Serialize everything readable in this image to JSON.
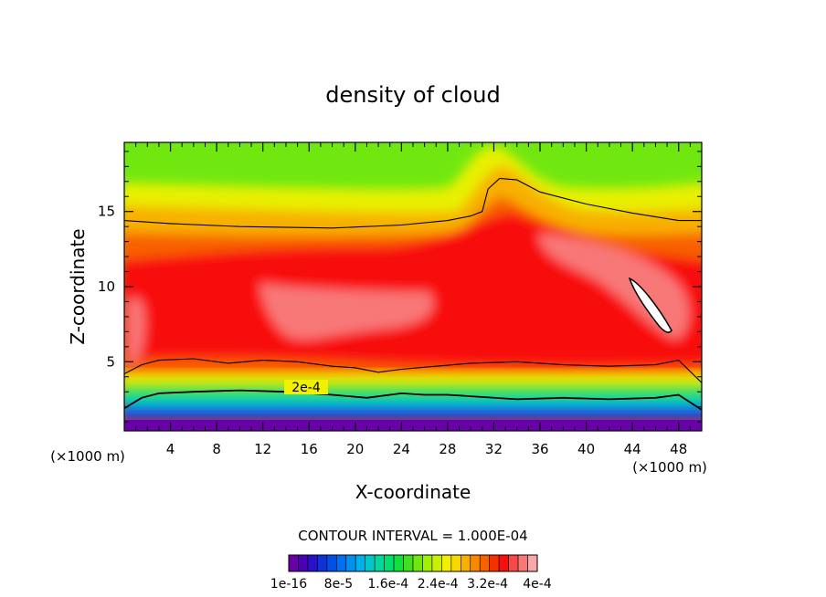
{
  "chart_data": {
    "type": "heatmap",
    "title": "density of cloud",
    "xlabel": "X-coordinate",
    "ylabel": "Z-coordinate",
    "x_unit_left": "(×1000 m)",
    "x_unit_right": "(×1000 m)",
    "xlim": [
      0,
      50
    ],
    "ylim": [
      0.4,
      19.6
    ],
    "x_ticks": [
      4,
      8,
      12,
      16,
      20,
      24,
      28,
      32,
      36,
      40,
      44,
      48
    ],
    "y_ticks": [
      5,
      10,
      15
    ],
    "contour_interval_text": "CONTOUR INTERVAL = 1.000E-04",
    "contour_label": "2e-4",
    "colorbar": {
      "tick_labels": [
        "1e-16",
        "8e-5",
        "1.6e-4",
        "2.4e-4",
        "3.2e-4",
        "4e-4"
      ],
      "colors": [
        "#6a00a8",
        "#4b00b8",
        "#2a10c8",
        "#1030d8",
        "#0050e8",
        "#0070f0",
        "#0090f0",
        "#00b0e8",
        "#00c8c8",
        "#00d8a0",
        "#00e070",
        "#10e040",
        "#40e020",
        "#70e810",
        "#a0f000",
        "#c8f000",
        "#f0f000",
        "#f8d800",
        "#f8b000",
        "#f88800",
        "#f86000",
        "#f83000",
        "#f81010",
        "#f84848",
        "#f87878",
        "#f8a8a8"
      ]
    },
    "isolines": [
      {
        "value": "1e-4",
        "points": [
          [
            0,
            4.2
          ],
          [
            1.5,
            4.8
          ],
          [
            3,
            5.1
          ],
          [
            6,
            5.2
          ],
          [
            9,
            4.9
          ],
          [
            12,
            5.1
          ],
          [
            15,
            5.0
          ],
          [
            18,
            4.7
          ],
          [
            20,
            4.6
          ],
          [
            22,
            4.3
          ],
          [
            24,
            4.5
          ],
          [
            27,
            4.7
          ],
          [
            30,
            4.9
          ],
          [
            34,
            5.0
          ],
          [
            38,
            4.8
          ],
          [
            42,
            4.7
          ],
          [
            46,
            4.8
          ],
          [
            48,
            5.1
          ],
          [
            50,
            3.6
          ]
        ]
      },
      {
        "value": "2e-4",
        "points": [
          [
            0,
            1.9
          ],
          [
            1.5,
            2.6
          ],
          [
            3,
            2.9
          ],
          [
            6,
            3.0
          ],
          [
            10,
            3.1
          ],
          [
            14,
            3.0
          ],
          [
            18,
            2.8
          ],
          [
            21,
            2.6
          ],
          [
            24,
            2.9
          ],
          [
            26,
            2.8
          ],
          [
            28,
            2.8
          ],
          [
            30,
            2.7
          ],
          [
            34,
            2.5
          ],
          [
            38,
            2.6
          ],
          [
            42,
            2.5
          ],
          [
            46,
            2.6
          ],
          [
            48,
            2.8
          ],
          [
            50,
            1.8
          ]
        ]
      },
      {
        "value": "1e-4",
        "points": [
          [
            0,
            14.4
          ],
          [
            4,
            14.2
          ],
          [
            10,
            14.0
          ],
          [
            18,
            13.9
          ],
          [
            24,
            14.1
          ],
          [
            28,
            14.4
          ],
          [
            30,
            14.7
          ],
          [
            31,
            15.0
          ],
          [
            31.5,
            16.5
          ],
          [
            32.5,
            17.2
          ],
          [
            34,
            17.1
          ],
          [
            36,
            16.3
          ],
          [
            40,
            15.5
          ],
          [
            44,
            14.9
          ],
          [
            48,
            14.4
          ],
          [
            50,
            14.4
          ]
        ]
      }
    ]
  }
}
